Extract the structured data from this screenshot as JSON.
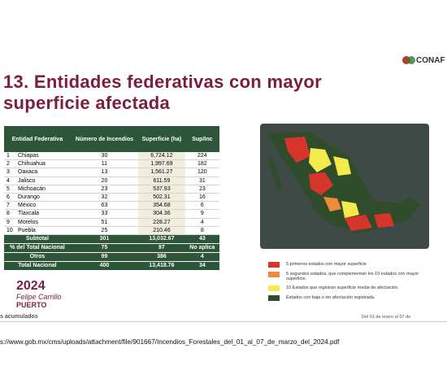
{
  "header": {
    "logo": "CONAF",
    "title_lines": [
      "13. Entidades federativas con mayor",
      "superficie afectada"
    ]
  },
  "table": {
    "columns": [
      "Entidad Federativa",
      "Número de Incendios",
      "Superficie (ha)",
      "Sup/Inc"
    ],
    "rows": [
      [
        "1",
        "Chiapas",
        "30",
        "6,724.12",
        "224"
      ],
      [
        "2",
        "Chihuahua",
        "11",
        "1,997.69",
        "182"
      ],
      [
        "3",
        "Oaxaca",
        "13",
        "1,561.27",
        "120"
      ],
      [
        "4",
        "Jalisco",
        "20",
        "611.59",
        "31"
      ],
      [
        "5",
        "Michoacán",
        "23",
        "537.93",
        "23"
      ],
      [
        "6",
        "Durango",
        "32",
        "502.31",
        "16"
      ],
      [
        "7",
        "México",
        "63",
        "354.68",
        "6"
      ],
      [
        "8",
        "Tlaxcala",
        "33",
        "304.36",
        "9"
      ],
      [
        "9",
        "Morelos",
        "51",
        "228.27",
        "4"
      ],
      [
        "10",
        "Puebla",
        "25",
        "210.46",
        "8"
      ]
    ],
    "summary": [
      [
        "Subtotal",
        "301",
        "13,032.67",
        "43"
      ],
      [
        "% del Total Nacional",
        "75",
        "97",
        "No aplica"
      ],
      [
        "Otros",
        "99",
        "386",
        "4"
      ],
      [
        "Total Nacional",
        "400",
        "13,418.76",
        "34"
      ]
    ]
  },
  "legend": [
    {
      "color": "#d7352b",
      "label": "5 primeros estados con mayor superficie"
    },
    {
      "color": "#ef8c3a",
      "label": "5 segundos estados, que complementan los 10 estados con mayor superficie."
    },
    {
      "color": "#f4ea4c",
      "label": "10 Estados que registran superficie media de afectación."
    },
    {
      "color": "#2f4d2a",
      "label": "Estados con baja o sin afectación registrada."
    }
  ],
  "footer": {
    "year": "2024",
    "name": "Felipe Carrillo",
    "place": "PUERTO",
    "left_note": "s acumulados",
    "right_note": "Del 01 de enero al 07 de",
    "url": "s://www.gob.mx/cms/uploads/attachment/file/901667/Incendios_Forestales_del_01_al_07_de_marzo_del_2024.pdf"
  }
}
